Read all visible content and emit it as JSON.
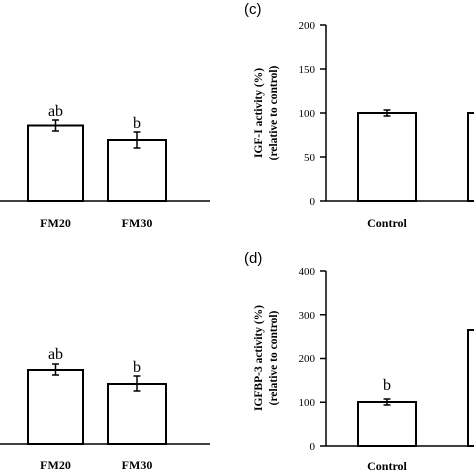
{
  "chart_data": [
    {
      "type": "bar",
      "panel": "",
      "categories": [
        "FM20",
        "FM30"
      ],
      "values": [
        88,
        70
      ],
      "errors": [
        6,
        10
      ],
      "labels": [
        "ab",
        "b"
      ],
      "ylabel": "",
      "ylabel2": "",
      "ylim": null,
      "yticks": [],
      "x_tick_labels_shown": true,
      "partial": "left portion cropped"
    },
    {
      "type": "bar",
      "panel": "(c)",
      "categories": [
        "Control",
        ""
      ],
      "values": [
        100,
        100
      ],
      "errors": [
        3,
        3
      ],
      "labels": [
        "",
        ""
      ],
      "ylabel": "IGF-I activity (%)",
      "ylabel2": "(relative to control)",
      "ylim": [
        0,
        200
      ],
      "yticks": [
        0,
        50,
        100,
        150,
        200
      ],
      "partial": "right portion cropped"
    },
    {
      "type": "bar",
      "panel": "",
      "categories": [
        "FM20",
        "FM30"
      ],
      "values": [
        75,
        60
      ],
      "errors": [
        6,
        8
      ],
      "labels": [
        "ab",
        "b"
      ],
      "ylabel": "",
      "ylabel2": "",
      "ylim": null,
      "yticks": [],
      "partial": "left portion cropped"
    },
    {
      "type": "bar",
      "panel": "(d)",
      "categories": [
        "Control",
        ""
      ],
      "values": [
        100,
        265
      ],
      "errors": [
        7,
        0
      ],
      "labels": [
        "b",
        ""
      ],
      "ylabel": "IGFBP-3 activity (%)",
      "ylabel2": "(relative to control)",
      "ylim": [
        0,
        400
      ],
      "yticks": [
        0,
        100,
        200,
        300,
        400
      ],
      "partial": "right portion cropped"
    }
  ]
}
